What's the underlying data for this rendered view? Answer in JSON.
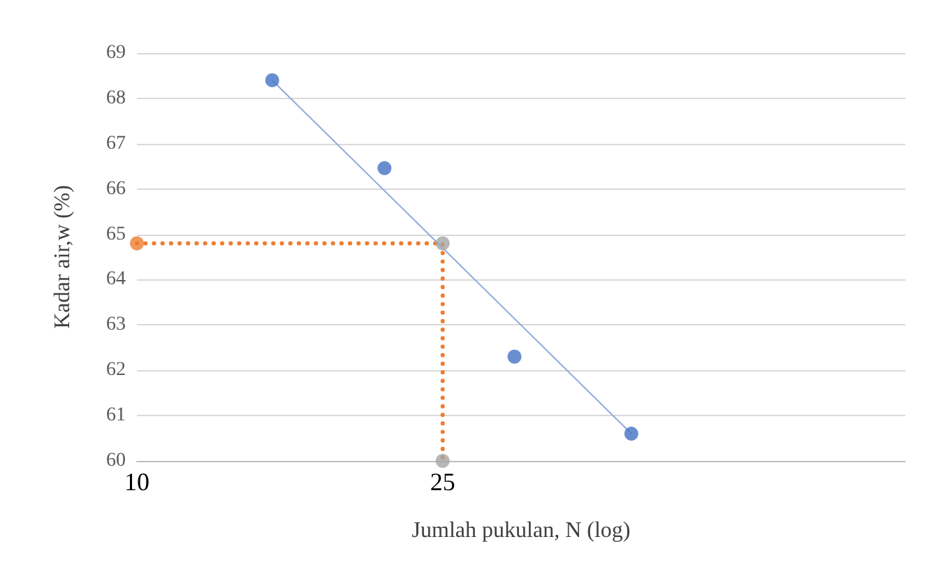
{
  "chart_data": {
    "type": "scatter",
    "xlabel": "Jumlah pukulan, N (log)",
    "ylabel": "Kadar air,w (%)",
    "log": "x",
    "xlim": [
      10,
      100
    ],
    "xticks": [
      10,
      25
    ],
    "ylim": [
      60,
      69
    ],
    "yticks": [
      60,
      61,
      62,
      63,
      64,
      65,
      66,
      67,
      68,
      69
    ],
    "grid": "y",
    "marker": "circle",
    "series": [
      {
        "type": "line",
        "color": "#8faadc",
        "x": [
          15,
          44
        ],
        "values": [
          68.4,
          60.6
        ],
        "marker": "none",
        "line_style": "solid"
      },
      {
        "type": "line",
        "color": "#ed7d31",
        "x": [
          10,
          25,
          25
        ],
        "values": [
          64.8,
          64.8,
          60
        ],
        "marker": "none",
        "line_style": "dotted"
      },
      {
        "color": "#4472c4",
        "x": [
          15,
          21,
          31,
          44
        ],
        "values": [
          68.4,
          66.46,
          62.3,
          60.6
        ]
      },
      {
        "color": "#ed7d31",
        "x": [
          10
        ],
        "values": [
          64.8
        ]
      },
      {
        "color": "#a5a5a5",
        "x": [
          25,
          25
        ],
        "values": [
          64.8,
          60
        ]
      }
    ]
  }
}
